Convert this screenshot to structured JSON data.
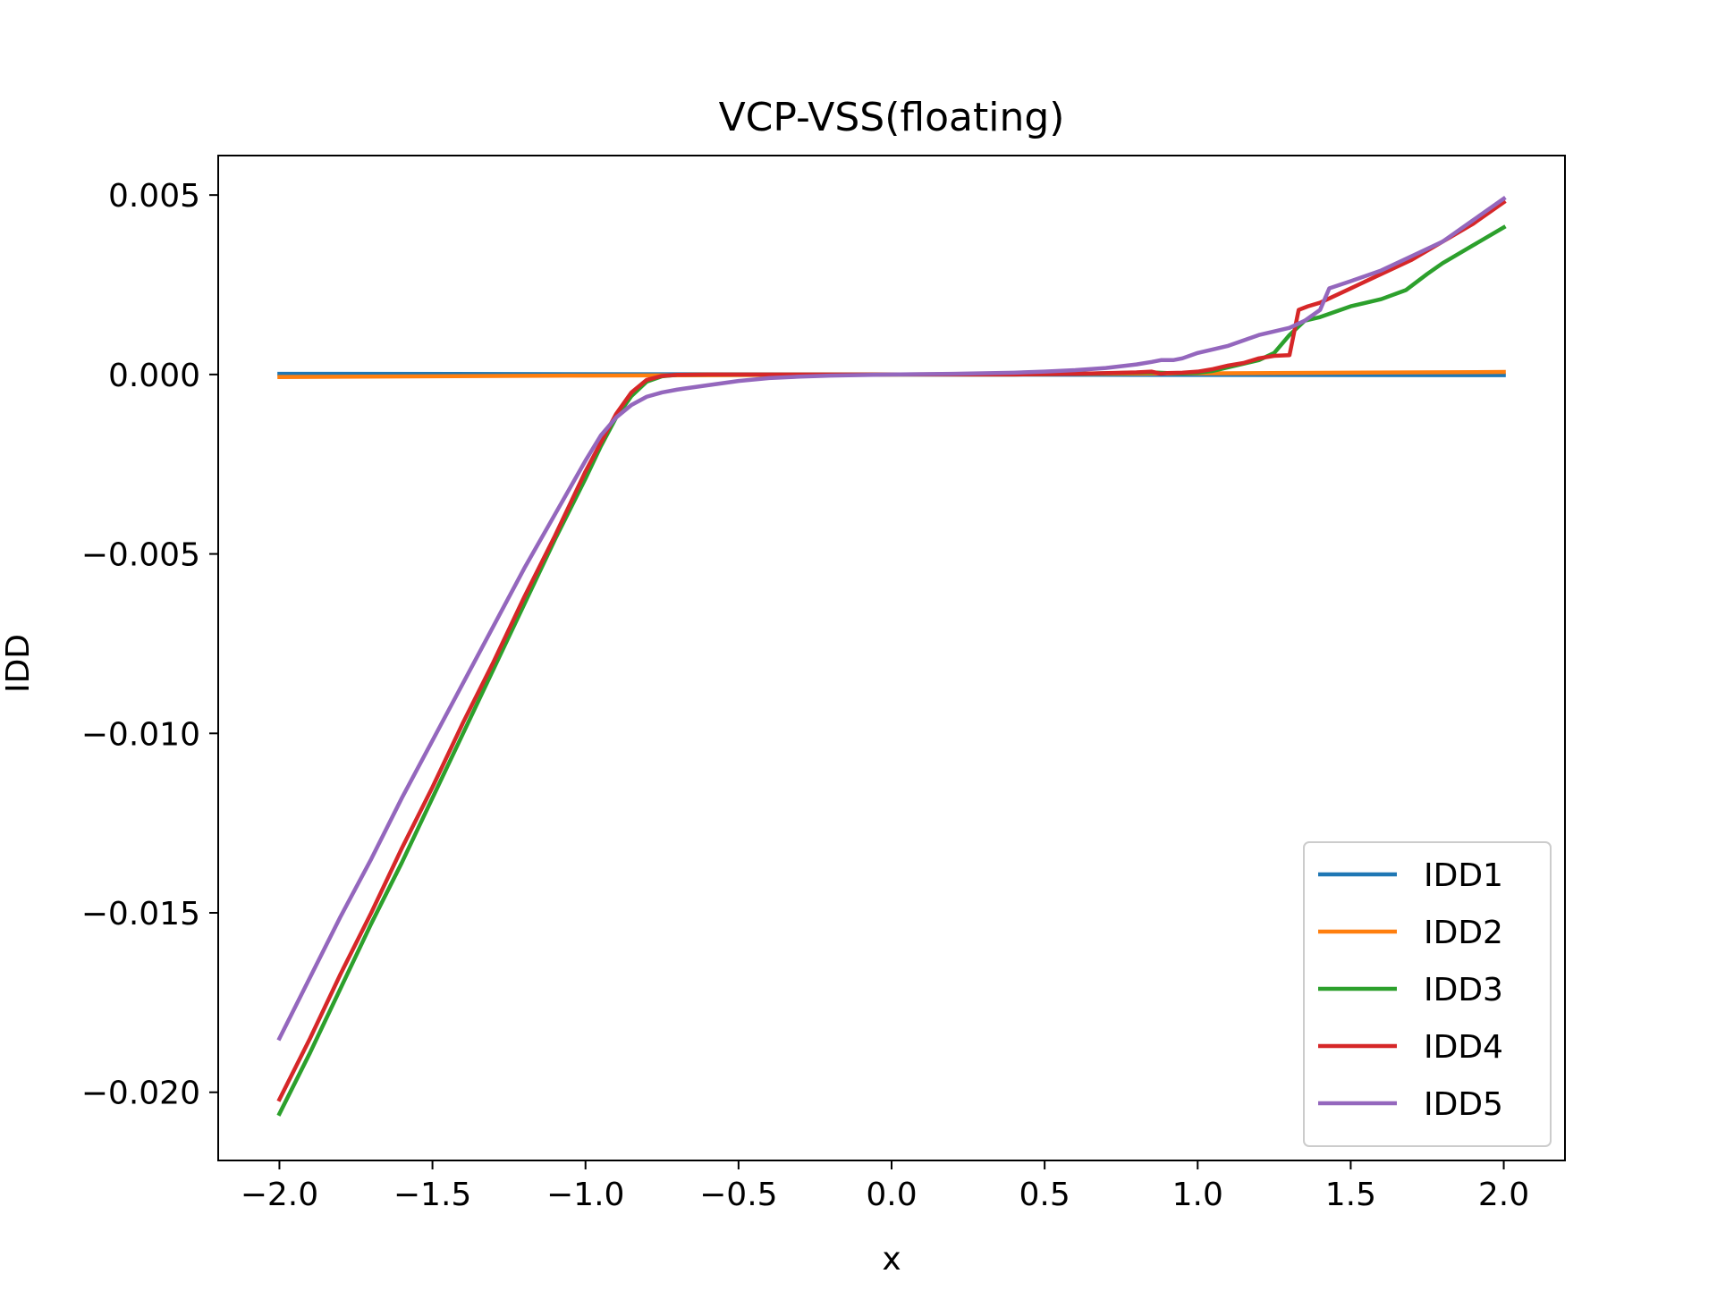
{
  "chart_data": {
    "type": "line",
    "title": "VCP-VSS(floating)",
    "xlabel": "x",
    "ylabel": "IDD",
    "xlim": [
      -2.2,
      2.2
    ],
    "ylim": [
      -0.0219,
      0.0061
    ],
    "xticks": [
      -2.0,
      -1.5,
      -1.0,
      -0.5,
      0.0,
      0.5,
      1.0,
      1.5,
      2.0
    ],
    "xtick_labels": [
      "−2.0",
      "−1.5",
      "−1.0",
      "−0.5",
      "0.0",
      "0.5",
      "1.0",
      "1.5",
      "2.0"
    ],
    "yticks": [
      0.005,
      0.0,
      -0.005,
      -0.01,
      -0.015,
      -0.02
    ],
    "ytick_labels": [
      "0.005",
      "0.000",
      "−0.005",
      "−0.010",
      "−0.015",
      "−0.020"
    ],
    "grid": false,
    "legend_position": "bottom-right",
    "series": [
      {
        "name": "IDD1",
        "color": "#1f77b4",
        "x": [
          -2.0,
          2.0
        ],
        "y": [
          2e-05,
          -2e-05
        ]
      },
      {
        "name": "IDD2",
        "color": "#ff7f0e",
        "x": [
          -2.0,
          -1.0,
          0.0,
          1.0,
          2.0
        ],
        "y": [
          -7e-05,
          -3e-05,
          0.0,
          3e-05,
          7e-05
        ]
      },
      {
        "name": "IDD3",
        "color": "#2ca02c",
        "x": [
          -2.0,
          -1.9,
          -1.8,
          -1.7,
          -1.6,
          -1.5,
          -1.4,
          -1.3,
          -1.2,
          -1.1,
          -1.0,
          -0.95,
          -0.9,
          -0.85,
          -0.8,
          -0.75,
          -0.7,
          -0.6,
          -0.5,
          -0.4,
          -0.2,
          0.0,
          0.2,
          0.4,
          0.6,
          0.8,
          0.85,
          0.9,
          0.95,
          1.0,
          1.05,
          1.1,
          1.15,
          1.2,
          1.25,
          1.3,
          1.35,
          1.4,
          1.45,
          1.5,
          1.6,
          1.68,
          1.75,
          1.8,
          1.9,
          2.0
        ],
        "y": [
          -0.0206,
          -0.0189,
          -0.0171,
          -0.0153,
          -0.0136,
          -0.0118,
          -0.01,
          -0.0082,
          -0.0064,
          -0.0046,
          -0.0029,
          -0.002,
          -0.0012,
          -0.0006,
          -0.0002,
          -5e-05,
          -1e-05,
          0.0,
          0.0,
          0.0,
          0.0,
          0.0,
          0.0,
          0.0,
          2e-05,
          5e-05,
          6e-05,
          4e-05,
          3e-05,
          5e-05,
          0.0001,
          0.0002,
          0.0003,
          0.0004,
          0.0006,
          0.0011,
          0.0015,
          0.0016,
          0.00175,
          0.0019,
          0.0021,
          0.00235,
          0.0028,
          0.0031,
          0.0036,
          0.0041
        ]
      },
      {
        "name": "IDD4",
        "color": "#d62728",
        "x": [
          -2.0,
          -1.9,
          -1.8,
          -1.7,
          -1.6,
          -1.5,
          -1.4,
          -1.3,
          -1.2,
          -1.1,
          -1.0,
          -0.95,
          -0.9,
          -0.85,
          -0.8,
          -0.75,
          -0.7,
          -0.6,
          -0.5,
          -0.4,
          -0.2,
          0.0,
          0.2,
          0.4,
          0.6,
          0.8,
          0.85,
          0.88,
          0.9,
          0.95,
          1.0,
          1.05,
          1.1,
          1.15,
          1.2,
          1.25,
          1.3,
          1.33,
          1.36,
          1.4,
          1.45,
          1.5,
          1.6,
          1.7,
          1.8,
          1.9,
          2.0
        ],
        "y": [
          -0.0202,
          -0.0185,
          -0.0167,
          -0.015,
          -0.0132,
          -0.0115,
          -0.0097,
          -0.008,
          -0.0062,
          -0.0045,
          -0.0027,
          -0.0019,
          -0.0011,
          -0.0005,
          -0.00015,
          -4e-05,
          -1e-05,
          0.0,
          0.0,
          0.0,
          0.0,
          0.0,
          0.0,
          0.0,
          2e-05,
          6e-05,
          8e-05,
          2e-05,
          4e-05,
          5e-05,
          8e-05,
          0.00015,
          0.00025,
          0.00032,
          0.00045,
          0.00052,
          0.00054,
          0.0018,
          0.0019,
          0.002,
          0.0022,
          0.0024,
          0.0028,
          0.0032,
          0.0037,
          0.0042,
          0.0048
        ]
      },
      {
        "name": "IDD5",
        "color": "#9467bd",
        "x": [
          -2.0,
          -1.9,
          -1.8,
          -1.7,
          -1.6,
          -1.5,
          -1.4,
          -1.3,
          -1.2,
          -1.1,
          -1.0,
          -0.95,
          -0.9,
          -0.85,
          -0.8,
          -0.75,
          -0.7,
          -0.6,
          -0.5,
          -0.4,
          -0.3,
          -0.2,
          0.0,
          0.2,
          0.4,
          0.5,
          0.6,
          0.7,
          0.8,
          0.85,
          0.88,
          0.92,
          0.95,
          1.0,
          1.1,
          1.2,
          1.3,
          1.35,
          1.4,
          1.43,
          1.5,
          1.6,
          1.65,
          1.7,
          1.8,
          1.9,
          2.0
        ],
        "y": [
          -0.0185,
          -0.0168,
          -0.0151,
          -0.0135,
          -0.0118,
          -0.0102,
          -0.0086,
          -0.007,
          -0.0054,
          -0.0039,
          -0.0024,
          -0.0017,
          -0.0012,
          -0.00085,
          -0.00062,
          -0.0005,
          -0.00042,
          -0.0003,
          -0.00018,
          -0.0001,
          -6e-05,
          -3e-05,
          0.0,
          2e-05,
          5e-05,
          8e-05,
          0.00012,
          0.00018,
          0.00028,
          0.00035,
          0.0004,
          0.0004,
          0.00045,
          0.0006,
          0.0008,
          0.0011,
          0.0013,
          0.0015,
          0.0018,
          0.0024,
          0.0026,
          0.0029,
          0.0031,
          0.0033,
          0.0037,
          0.0043,
          0.0049
        ]
      }
    ]
  }
}
